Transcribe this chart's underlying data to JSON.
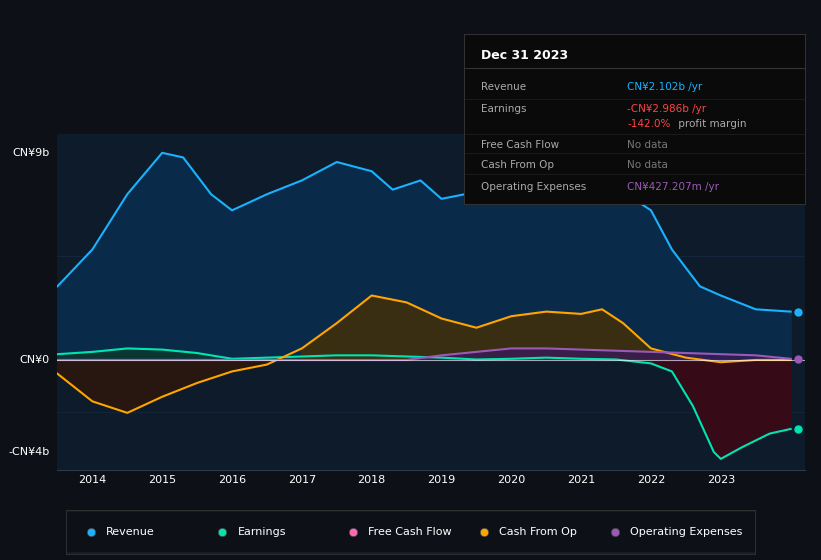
{
  "bg_color": "#0d1117",
  "chart_bg": "#0d1b2a",
  "revenue_color": "#1ab2ff",
  "earnings_color": "#00e5b0",
  "cash_from_op_color": "#ffa500",
  "op_expenses_color": "#9b59b6",
  "free_cash_flow_color": "#ff69b4",
  "ylabel_top": "CN¥9b",
  "ylabel_bottom": "-CN¥4b",
  "ylabel_mid": "CN¥0",
  "xlim_min": 2013.5,
  "xlim_max": 2024.2,
  "ylim_min": -4.8,
  "ylim_max": 9.8,
  "xticks": [
    2014,
    2015,
    2016,
    2017,
    2018,
    2019,
    2020,
    2021,
    2022,
    2023
  ],
  "legend_labels": [
    "Revenue",
    "Earnings",
    "Free Cash Flow",
    "Cash From Op",
    "Operating Expenses"
  ],
  "legend_colors": [
    "#1ab2ff",
    "#00e5b0",
    "#ff69b4",
    "#ffa500",
    "#9b59b6"
  ],
  "tooltip_title": "Dec 31 2023",
  "t_revenue_label": "Revenue",
  "t_revenue_val": "CN¥2.102b /yr",
  "t_revenue_color": "#1ab2ff",
  "t_earnings_label": "Earnings",
  "t_earnings_val": "-CN¥2.986b /yr",
  "t_earnings_color": "#ff4444",
  "t_margin_val": "-142.0%",
  "t_margin_color": "#ff4444",
  "t_margin_text": " profit margin",
  "t_fcf_label": "Free Cash Flow",
  "t_fcf_val": "No data",
  "t_cfo_label": "Cash From Op",
  "t_cfo_val": "No data",
  "t_opex_label": "Operating Expenses",
  "t_opex_val": "CN¥427.207m /yr",
  "t_opex_color": "#9b59b6",
  "t_nodata_color": "#777777"
}
